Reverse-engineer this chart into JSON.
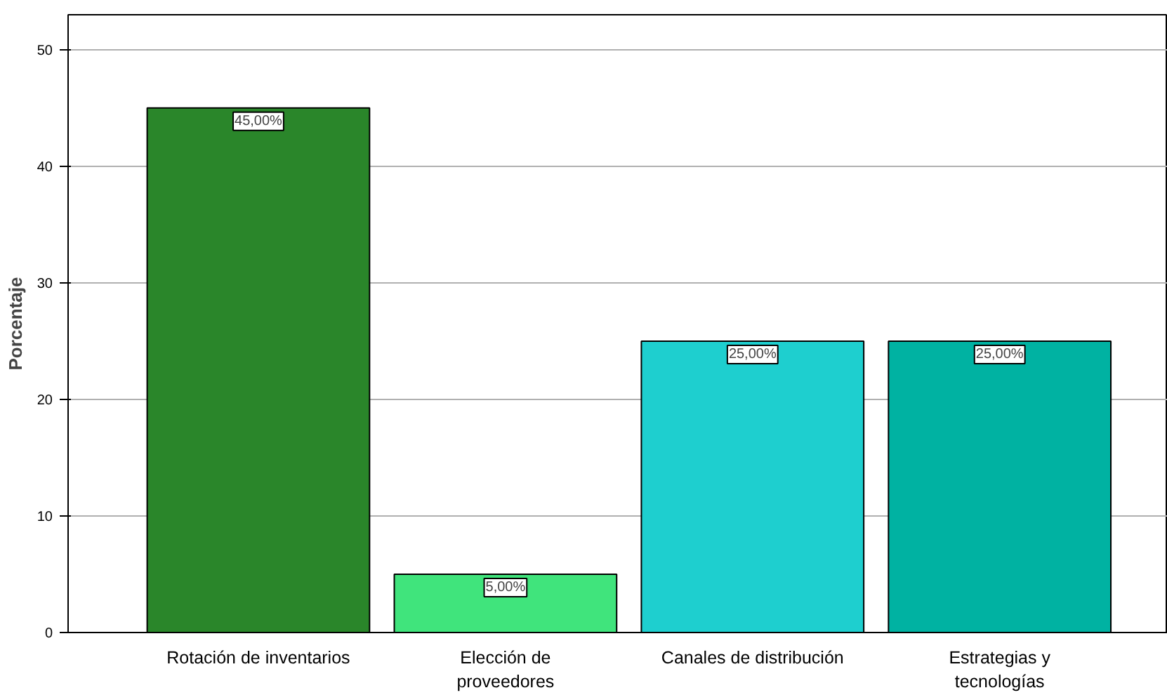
{
  "chart_data": {
    "type": "bar",
    "ylabel": "Porcentaje",
    "categories": [
      "Rotación de inventarios",
      "Elección de\nproveedores",
      "Canales de distribución",
      "Estrategias y\ntecnologías"
    ],
    "values": [
      45,
      5,
      25,
      25
    ],
    "colors": [
      "#2a862a",
      "#40e47c",
      "#1ecfcf",
      "#00b2a2"
    ],
    "value_labels": [
      "45,00%",
      "5,00%",
      "25,00%",
      "25,00%"
    ],
    "ylim": [
      0,
      53
    ],
    "yticks": [
      0,
      10,
      20,
      30,
      40,
      50
    ],
    "grid": "y"
  }
}
